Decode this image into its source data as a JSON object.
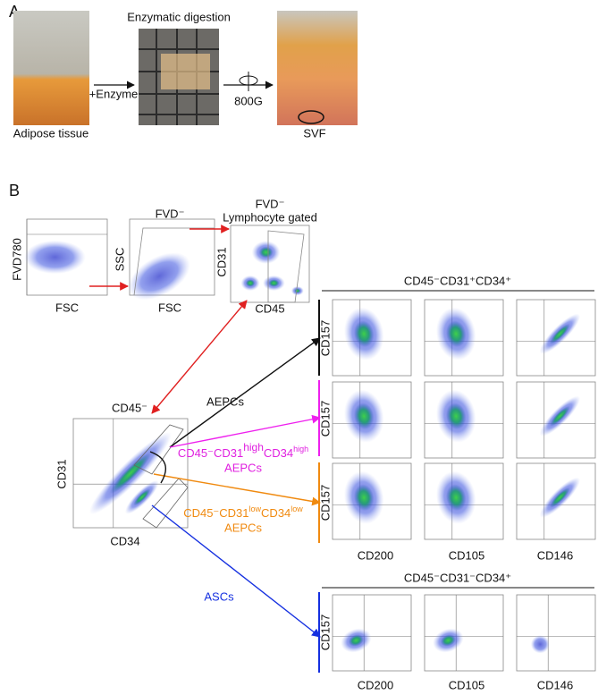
{
  "panel_a": {
    "label": "A",
    "step_title": "Enzymatic digestion",
    "enzyme": "+Enzyme",
    "spin": "800G",
    "tissue": "Adipose tissue",
    "product": "SVF"
  },
  "panel_b": {
    "label": "B",
    "plot1": {
      "y_label": "FVD780",
      "x_label": "FSC"
    },
    "plot2": {
      "title": "FVD⁻",
      "y_label": "SSC",
      "x_label": "FSC"
    },
    "plot3": {
      "title": [
        "FVD⁻",
        "Lymphocyte gated"
      ],
      "y_label": "CD31",
      "x_label": "CD45"
    },
    "gate_plot": {
      "title": "CD45⁻",
      "y_label": "CD31",
      "x_label": "CD34"
    },
    "arrows": {
      "aepcs": "AEPCs",
      "high": [
        "CD45⁻CD31",
        "high",
        "CD34",
        "high"
      ],
      "high_sub": "AEPCs",
      "low": [
        "CD45⁻CD31",
        "low",
        "CD34",
        "low"
      ],
      "low_sub": "AEPCs",
      "ascs": "ASCs"
    },
    "group1": {
      "title": "CD45⁻CD31⁺CD34⁺",
      "row_labels": [
        "CD157",
        "CD157",
        "CD157"
      ],
      "col_labels": [
        "CD200",
        "CD105",
        "CD146"
      ]
    },
    "group2": {
      "title": "CD45⁻CD31⁻CD34⁺",
      "row_labels": [
        "CD157"
      ],
      "col_labels": [
        "CD200",
        "CD105",
        "CD146"
      ]
    }
  }
}
